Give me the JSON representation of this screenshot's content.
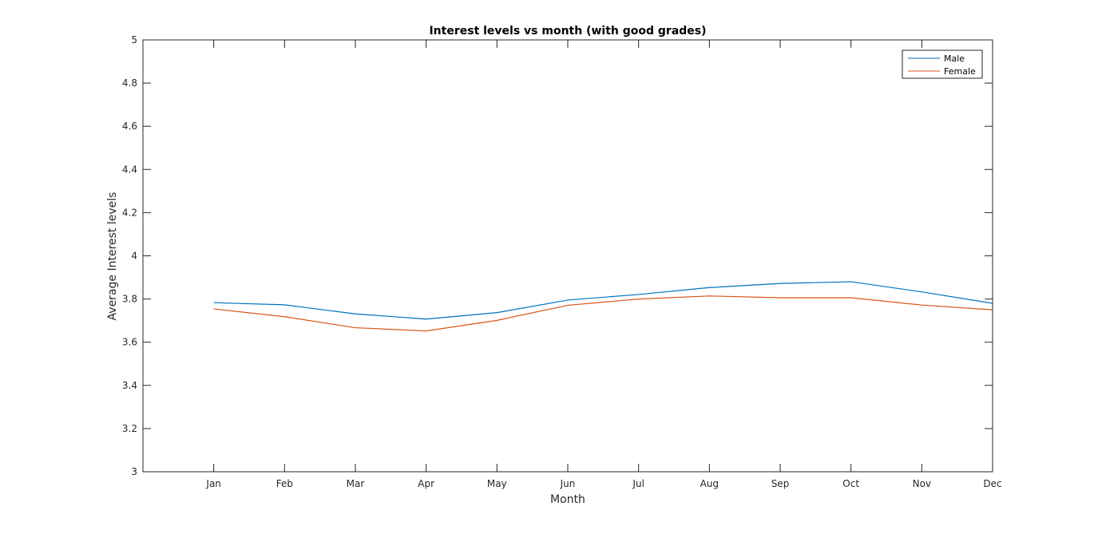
{
  "colors": {
    "male": "#0072BD",
    "female": "#D95319",
    "axis": "#262626",
    "background": "#ffffff"
  },
  "chart_data": {
    "type": "line",
    "title": "Interest levels vs month (with good grades)",
    "xlabel": "Month",
    "ylabel": "Average Interest levels",
    "categories": [
      "Jan",
      "Feb",
      "Mar",
      "Apr",
      "May",
      "Jun",
      "Jul",
      "Aug",
      "Sep",
      "Oct",
      "Nov",
      "Dec"
    ],
    "xlim": [
      0,
      12
    ],
    "ylim": [
      3,
      5
    ],
    "yticks": [
      3,
      3.2,
      3.4,
      3.6,
      3.8,
      4,
      4.2,
      4.4,
      4.6,
      4.8,
      5
    ],
    "ytick_labels": [
      "3",
      "3.2",
      "3.4",
      "3.6",
      "3.8",
      "4",
      "4.2",
      "4.4",
      "4.6",
      "4.8",
      "5"
    ],
    "grid": false,
    "legend_position": "top-right",
    "series": [
      {
        "name": "Male",
        "color": "#0072BD",
        "values": [
          3.783,
          3.773,
          3.731,
          3.707,
          3.737,
          3.795,
          3.821,
          3.853,
          3.872,
          3.88,
          3.833,
          3.78
        ]
      },
      {
        "name": "Female",
        "color": "#D95319",
        "values": [
          3.754,
          3.718,
          3.667,
          3.652,
          3.701,
          3.771,
          3.8,
          3.814,
          3.806,
          3.806,
          3.772,
          3.75
        ]
      }
    ]
  }
}
